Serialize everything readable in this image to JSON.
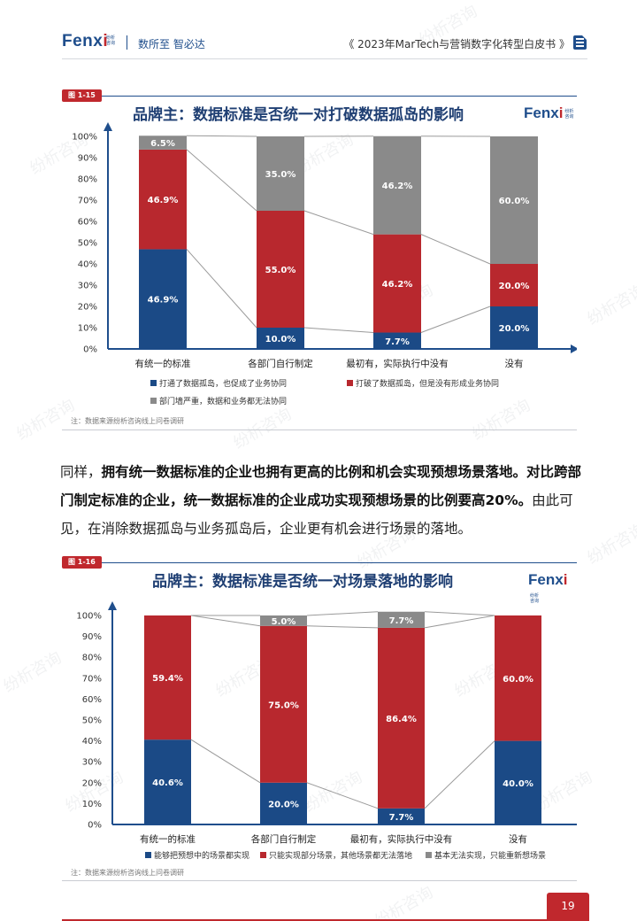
{
  "header": {
    "brand": "Fenx",
    "brand_i": "i",
    "brand_small": "纷析咨询",
    "slogan": "数所至  智必达",
    "doc_title": "《 2023年MarTech与营销数字化转型白皮书 》"
  },
  "watermark": "纷析咨询",
  "figure1": {
    "tag": "图 1-15",
    "title": "品牌主：数据标准是否统一对打破数据孤岛的影响",
    "note": "注：数据来源纷析咨询线上问卷调研"
  },
  "figure2": {
    "tag": "图 1-16",
    "title": "品牌主：数据标准是否统一对场景落地的影响",
    "note": "注：数据来源纷析咨询线上问卷调研"
  },
  "paragraph": {
    "p1": "同样，",
    "p2": "拥有统一数据标准的企业也拥有更高的比例和机会实现预想场景落地。对比跨部门制定标准的企业，统一数据标准的企业成功实现预想场景的比例要高20%。",
    "p3": "由此可见，在消除数据孤岛与业务孤岛后，企业更有机会进行场景的落地。"
  },
  "page_number": "19",
  "colors": {
    "blue": "#1b4a86",
    "red": "#b8282e",
    "gray": "#8a8a8a",
    "accent": "#c0282d"
  },
  "chart_data": [
    {
      "type": "bar",
      "stacked": true,
      "categories": [
        "有统一的标准",
        "各部门自行制定",
        "最初有，实际执行中没有",
        "没有"
      ],
      "y_ticks": [
        "0%",
        "10%",
        "20%",
        "30%",
        "40%",
        "50%",
        "60%",
        "70%",
        "80%",
        "90%",
        "100%"
      ],
      "ylim": [
        0,
        100
      ],
      "series": [
        {
          "name": "打通了数据孤岛，也促成了业务协同",
          "color": "#1b4a86",
          "values": [
            46.9,
            10.0,
            7.7,
            20.0
          ],
          "labels": [
            "46.9%",
            "10.0%",
            "7.7%",
            "20.0%"
          ]
        },
        {
          "name": "打破了数据孤岛，但是没有形成业务协同",
          "color": "#b8282e",
          "values": [
            46.9,
            55.0,
            46.2,
            20.0
          ],
          "labels": [
            "46.9%",
            "55.0%",
            "46.2%",
            "20.0%"
          ]
        },
        {
          "name": "部门墙严重，数据和业务都无法协同",
          "color": "#8a8a8a",
          "values": [
            6.5,
            35.0,
            46.2,
            60.0
          ],
          "labels": [
            "6.5%",
            "35.0%",
            "46.2%",
            "60.0%"
          ]
        }
      ],
      "legend_position": "bottom"
    },
    {
      "type": "bar",
      "stacked": true,
      "categories": [
        "有统一的标准",
        "各部门自行制定",
        "最初有，实际执行中没有",
        "没有"
      ],
      "y_ticks": [
        "0%",
        "10%",
        "20%",
        "30%",
        "40%",
        "50%",
        "60%",
        "70%",
        "80%",
        "90%",
        "100%"
      ],
      "ylim": [
        0,
        100
      ],
      "series": [
        {
          "name": "能够把预想中的场景都实现",
          "color": "#1b4a86",
          "values": [
            40.6,
            20.0,
            7.7,
            40.0
          ],
          "labels": [
            "40.6%",
            "20.0%",
            "7.7%",
            "40.0%"
          ]
        },
        {
          "name": "只能实现部分场景，其他场景都无法落地",
          "color": "#b8282e",
          "values": [
            59.4,
            75.0,
            86.4,
            60.0
          ],
          "labels": [
            "59.4%",
            "75.0%",
            "86.4%",
            "60.0%"
          ]
        },
        {
          "name": "基本无法实现，只能重新想场景",
          "color": "#8a8a8a",
          "values": [
            0,
            5.0,
            7.7,
            0
          ],
          "labels": [
            "",
            "5.0%",
            "7.7%",
            ""
          ]
        }
      ],
      "legend_position": "bottom"
    }
  ]
}
